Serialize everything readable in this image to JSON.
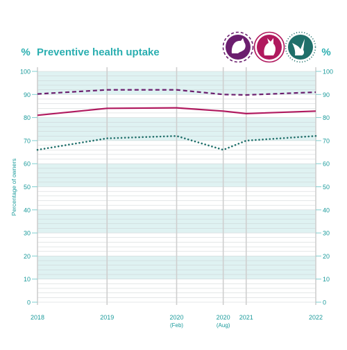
{
  "chart_data": {
    "type": "line",
    "title": "Preventive health uptake",
    "unit_symbol": "%",
    "ylabel": "Percentage of owners",
    "ylim": [
      0,
      100
    ],
    "yticks": [
      0,
      10,
      20,
      30,
      40,
      50,
      60,
      70,
      80,
      90,
      100
    ],
    "x_ticks": [
      {
        "x": 2018,
        "label": "2018",
        "sublabel": ""
      },
      {
        "x": 2019,
        "label": "2019",
        "sublabel": ""
      },
      {
        "x": 2020,
        "label": "2020",
        "sublabel": "(Feb)"
      },
      {
        "x": 2020.67,
        "label": "2020",
        "sublabel": "(Aug)"
      },
      {
        "x": 2021,
        "label": "2021",
        "sublabel": ""
      },
      {
        "x": 2022,
        "label": "2022",
        "sublabel": ""
      }
    ],
    "xlim": [
      2018,
      2022
    ],
    "series": [
      {
        "style": "dashed",
        "color": "#6b1e6e",
        "icon": "dog-icon",
        "points": [
          [
            2018,
            90.2
          ],
          [
            2019,
            92
          ],
          [
            2020,
            92
          ],
          [
            2020.67,
            90
          ],
          [
            2021,
            89.8
          ],
          [
            2022,
            91
          ]
        ]
      },
      {
        "style": "solid",
        "color": "#b0195e",
        "icon": "cat-icon",
        "points": [
          [
            2018,
            81
          ],
          [
            2019,
            84
          ],
          [
            2020,
            84.2
          ],
          [
            2020.67,
            82.8
          ],
          [
            2021,
            81.7
          ],
          [
            2022,
            82.8
          ]
        ]
      },
      {
        "style": "dotted",
        "color": "#1f6f6a",
        "icon": "rabbit-icon",
        "points": [
          [
            2018,
            66
          ],
          [
            2019,
            71
          ],
          [
            2020,
            72
          ],
          [
            2020.67,
            66
          ],
          [
            2021,
            70
          ],
          [
            2022,
            72
          ]
        ]
      }
    ],
    "grid": true,
    "colors": {
      "accent": "#2aaeb0",
      "band": "#dff2f2",
      "axis_text": "#1a9a9b"
    }
  }
}
